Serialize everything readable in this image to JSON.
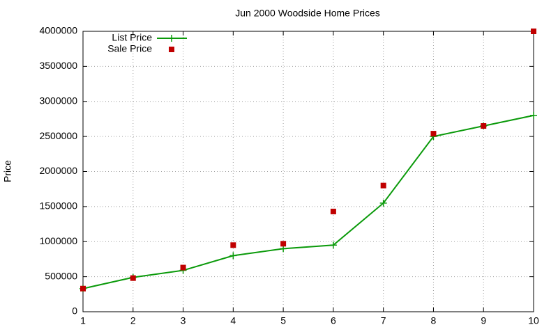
{
  "chart_data": {
    "type": "line",
    "title": "Jun 2000 Woodside Home Prices",
    "ylabel": "Price",
    "x": [
      1,
      2,
      3,
      4,
      5,
      6,
      7,
      8,
      9,
      10
    ],
    "series": [
      {
        "name": "List Price",
        "color": "#0a9a0a",
        "style": "linespoints",
        "values": [
          330000,
          490000,
          590000,
          800000,
          900000,
          950000,
          1550000,
          2500000,
          2650000,
          2800000
        ]
      },
      {
        "name": "Sale Price",
        "color": "#c00000",
        "style": "points",
        "values": [
          330000,
          480000,
          630000,
          950000,
          970000,
          1430000,
          1800000,
          2540000,
          2650000,
          4000000
        ]
      }
    ],
    "xlim": [
      1,
      10
    ],
    "xticks": [
      1,
      2,
      3,
      4,
      5,
      6,
      7,
      8,
      9,
      10
    ],
    "ylim": [
      0,
      4000000
    ],
    "yticks": [
      0,
      500000,
      1000000,
      1500000,
      2000000,
      2500000,
      3000000,
      3500000,
      4000000
    ],
    "grid": true,
    "legend": "top-left"
  }
}
